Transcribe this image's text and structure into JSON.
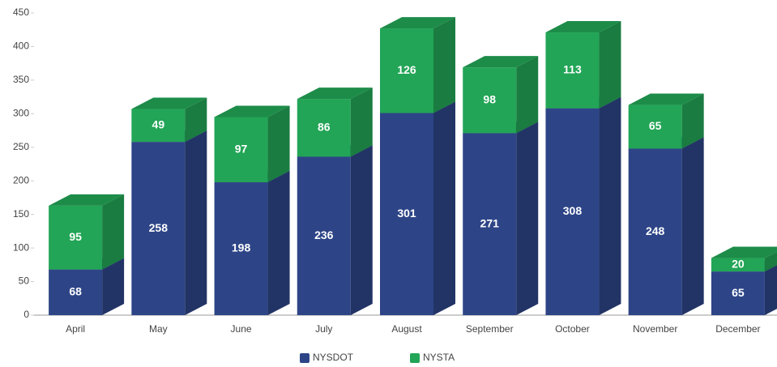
{
  "chart_data": {
    "type": "bar3d_stacked",
    "categories": [
      "April",
      "May",
      "June",
      "July",
      "August",
      "September",
      "October",
      "November",
      "December"
    ],
    "series": [
      {
        "name": "NYSDOT",
        "color": "#2d4587",
        "values": [
          68,
          258,
          198,
          236,
          301,
          271,
          308,
          248,
          65
        ]
      },
      {
        "name": "NYSTA",
        "color": "#22a556",
        "values": [
          95,
          49,
          97,
          86,
          126,
          98,
          113,
          65,
          20
        ]
      }
    ],
    "ylim": [
      0,
      450
    ],
    "yticks": [
      0,
      50,
      100,
      150,
      200,
      250,
      300,
      350,
      400,
      450
    ],
    "grid": false
  }
}
